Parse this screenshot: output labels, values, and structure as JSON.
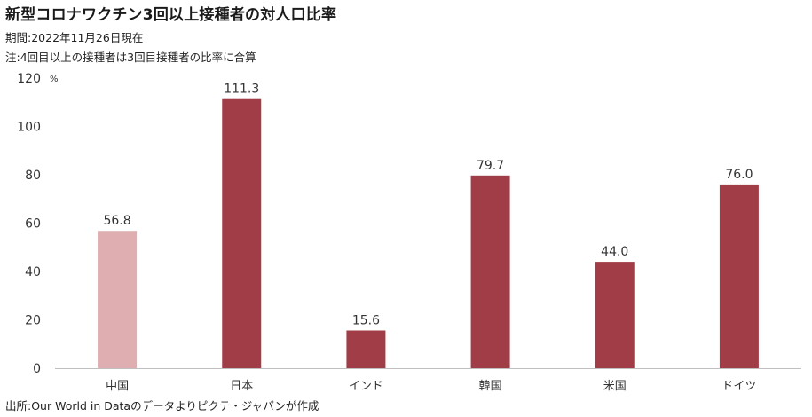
{
  "header": {
    "title": "新型コロナワクチン3回以上接種者の対人口比率",
    "period": "期間:2022年11月26日現在",
    "note": "注:4回目以上の接種者は3回目接種者の比率に合算"
  },
  "footer": {
    "source": "出所:Our World in Dataのデータよりピクテ・ジャパンが作成"
  },
  "chart_data": {
    "type": "bar",
    "title": "新型コロナワクチン3回以上接種者の対人口比率",
    "xlabel": "",
    "ylabel": "",
    "y_unit": "%",
    "categories": [
      "中国",
      "日本",
      "インド",
      "韓国",
      "米国",
      "ドイツ"
    ],
    "values": [
      56.8,
      111.3,
      15.6,
      79.7,
      44.0,
      76.0
    ],
    "value_labels": [
      "56.8",
      "111.3",
      "15.6",
      "79.7",
      "44.0",
      "76.0"
    ],
    "ylim": [
      0,
      120
    ],
    "yticks": [
      "0",
      "20",
      "40",
      "60",
      "80",
      "100",
      "120"
    ],
    "grid": false,
    "colors": [
      "#deaeb0",
      "#a13d46",
      "#a13d46",
      "#a13d46",
      "#a13d46",
      "#a13d46"
    ],
    "axis_color": "#bfbfbf"
  }
}
